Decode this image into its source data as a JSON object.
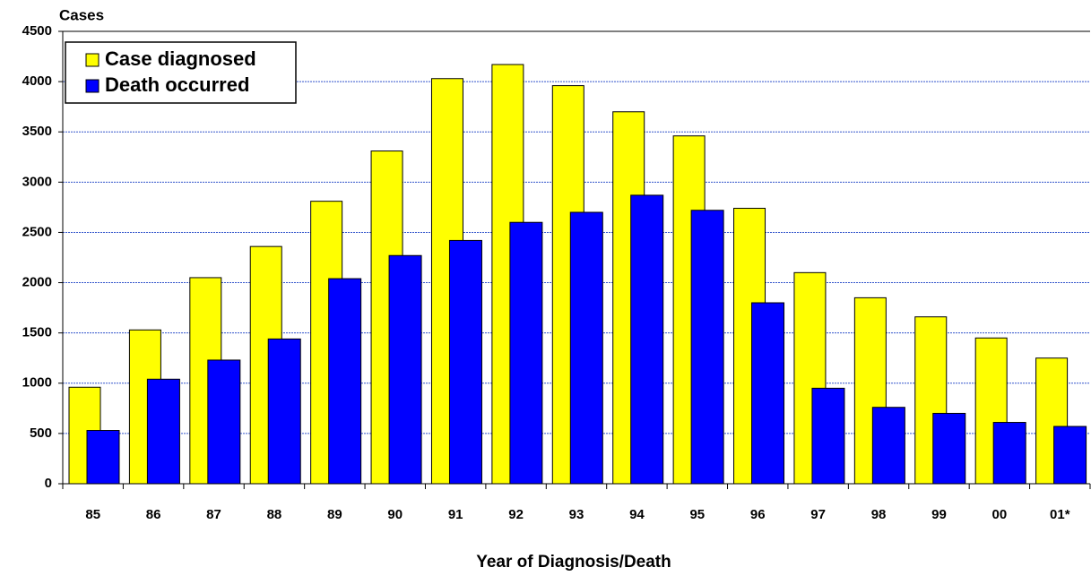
{
  "chart_data": {
    "type": "bar",
    "y_label": "Cases",
    "x_label": "Year of Diagnosis/Death",
    "categories": [
      "85",
      "86",
      "87",
      "88",
      "89",
      "90",
      "91",
      "92",
      "93",
      "94",
      "95",
      "96",
      "97",
      "98",
      "99",
      "00",
      "01*"
    ],
    "series": [
      {
        "name": "Case diagnosed",
        "color": "#ffff00",
        "values": [
          960,
          1530,
          2050,
          2360,
          2810,
          3310,
          4030,
          4170,
          3960,
          3700,
          3460,
          2740,
          2100,
          1850,
          1660,
          1450,
          1250
        ]
      },
      {
        "name": "Death occurred",
        "color": "#0000ff",
        "values": [
          530,
          1040,
          1230,
          1440,
          2040,
          2270,
          2420,
          2600,
          2700,
          2870,
          2720,
          1800,
          950,
          760,
          700,
          610,
          570
        ]
      }
    ],
    "ylim": [
      0,
      4500
    ],
    "yticks": [
      0,
      500,
      1000,
      1500,
      2000,
      2500,
      3000,
      3500,
      4000,
      4500
    ],
    "grid": true,
    "legend": "upper left"
  }
}
